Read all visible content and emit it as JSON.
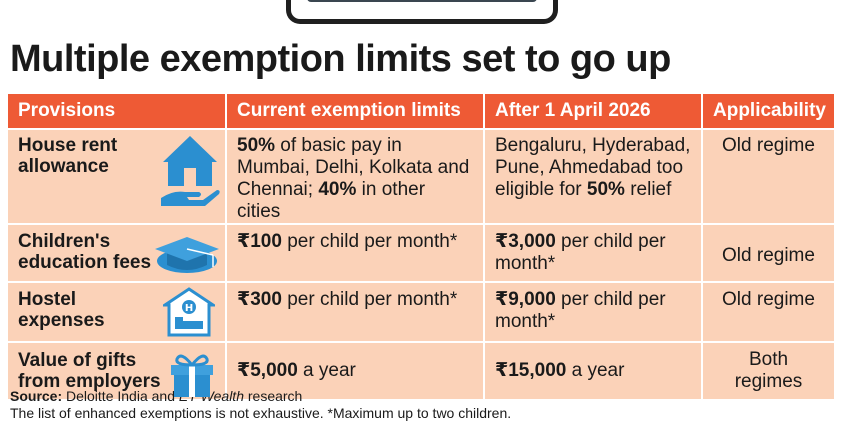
{
  "headline": "Multiple exemption limits set to go up",
  "table": {
    "headers": [
      "Provisions",
      "Current exemption limits",
      "After 1 April 2026",
      "Applicability"
    ],
    "rows": [
      {
        "provision": "House rent allowance",
        "icon": "house-in-hand-icon",
        "current": {
          "b1": "50%",
          "t1": " of basic pay in Mumbai, Delhi, Kolkata and Chennai; ",
          "b2": "40%",
          "t2": " in other cities"
        },
        "after": {
          "t1": "Bengaluru, Hyderabad, Pune, Ahmedabad too eligible for ",
          "b1": "50%",
          "t2": " relief"
        },
        "applicability": "Old regime"
      },
      {
        "provision": "Children's education fees",
        "icon": "graduation-cap-icon",
        "current": {
          "b1": "₹100",
          "t1": " per child per month*"
        },
        "after": {
          "b1": "₹3,000",
          "t1": " per child per month*"
        },
        "applicability": "Old regime"
      },
      {
        "provision": "Hostel expenses",
        "icon": "hostel-bed-icon",
        "current": {
          "b1": "₹300",
          "t1": " per child per month*"
        },
        "after": {
          "b1": "₹9,000",
          "t1": " per child per month*"
        },
        "applicability": "Old regime"
      },
      {
        "provision": "Value of gifts from employers",
        "icon": "gift-box-icon",
        "current": {
          "b1": "₹5,000",
          "t1": " a year"
        },
        "after": {
          "b1": "₹15,000",
          "t1": " a year"
        },
        "applicability": "Both regimes"
      }
    ]
  },
  "footer": {
    "source_label": "Source:",
    "source_text_1": " Deloitte India and ",
    "source_italic": "ET Wealth",
    "source_text_2": " research",
    "note": "The list of enhanced exemptions is not exhaustive. *Maximum up to two children."
  },
  "colors": {
    "header_bg": "#ee5a35",
    "cell_bg": "#fbd2b8",
    "icon_blue": "#2b8fd0"
  }
}
